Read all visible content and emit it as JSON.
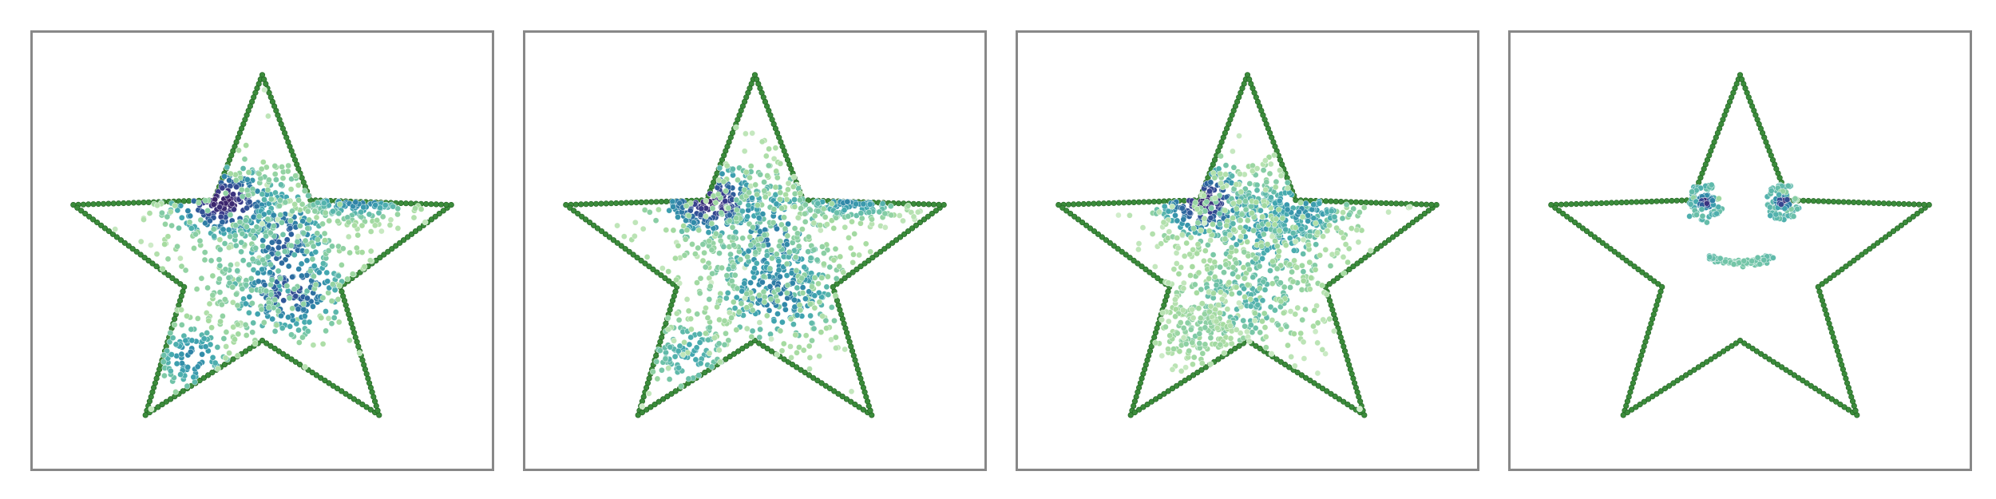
{
  "figure": {
    "panel_count": 4,
    "colormap": [
      "#d9f0d3",
      "#a6dba0",
      "#6fc3a8",
      "#41a7b0",
      "#2f86a8",
      "#2c5f9c",
      "#3a3b8a",
      "#3d1b5e"
    ],
    "outline_color": "#3b8b3b",
    "outline_edge_color": "#1f5f1f"
  },
  "chart_data": [
    {
      "type": "scatter",
      "title": "",
      "xlabel": "",
      "ylabel": "",
      "xlim": [
        0,
        1
      ],
      "ylim": [
        0,
        1
      ],
      "grid": false,
      "outline": {
        "shape": "five-pointed star",
        "points_per_edge": 28
      },
      "clusters": [
        {
          "center": [
            0.41,
            0.62
          ],
          "spread": [
            0.07,
            0.05
          ],
          "count": 220,
          "density": 0.95
        },
        {
          "center": [
            0.55,
            0.52
          ],
          "spread": [
            0.06,
            0.09
          ],
          "count": 170,
          "density": 0.7
        },
        {
          "center": [
            0.56,
            0.4
          ],
          "spread": [
            0.08,
            0.06
          ],
          "count": 190,
          "density": 0.75
        },
        {
          "center": [
            0.72,
            0.63
          ],
          "spread": [
            0.07,
            0.03
          ],
          "count": 130,
          "density": 0.6
        },
        {
          "center": [
            0.34,
            0.24
          ],
          "spread": [
            0.05,
            0.05
          ],
          "count": 100,
          "density": 0.55
        },
        {
          "center": [
            0.5,
            0.5
          ],
          "spread": [
            0.16,
            0.16
          ],
          "count": 240,
          "density": 0.25
        }
      ]
    },
    {
      "type": "scatter",
      "title": "",
      "xlabel": "",
      "ylabel": "",
      "xlim": [
        0,
        1
      ],
      "ylim": [
        0,
        1
      ],
      "grid": false,
      "outline": {
        "shape": "five-pointed star",
        "points_per_edge": 28
      },
      "clusters": [
        {
          "center": [
            0.4,
            0.62
          ],
          "spread": [
            0.07,
            0.05
          ],
          "count": 210,
          "density": 0.9
        },
        {
          "center": [
            0.54,
            0.52
          ],
          "spread": [
            0.07,
            0.1
          ],
          "count": 170,
          "density": 0.6
        },
        {
          "center": [
            0.55,
            0.4
          ],
          "spread": [
            0.09,
            0.07
          ],
          "count": 200,
          "density": 0.6
        },
        {
          "center": [
            0.72,
            0.63
          ],
          "spread": [
            0.07,
            0.03
          ],
          "count": 130,
          "density": 0.55
        },
        {
          "center": [
            0.35,
            0.25
          ],
          "spread": [
            0.06,
            0.06
          ],
          "count": 110,
          "density": 0.4
        },
        {
          "center": [
            0.5,
            0.5
          ],
          "spread": [
            0.17,
            0.17
          ],
          "count": 260,
          "density": 0.2
        }
      ]
    },
    {
      "type": "scatter",
      "title": "",
      "xlabel": "",
      "ylabel": "",
      "xlim": [
        0,
        1
      ],
      "ylim": [
        0,
        1
      ],
      "grid": false,
      "outline": {
        "shape": "five-pointed star",
        "points_per_edge": 28
      },
      "clusters": [
        {
          "center": [
            0.4,
            0.62
          ],
          "spread": [
            0.06,
            0.05
          ],
          "count": 200,
          "density": 0.9
        },
        {
          "center": [
            0.55,
            0.55
          ],
          "spread": [
            0.1,
            0.09
          ],
          "count": 260,
          "density": 0.45
        },
        {
          "center": [
            0.62,
            0.6
          ],
          "spread": [
            0.08,
            0.05
          ],
          "count": 150,
          "density": 0.5
        },
        {
          "center": [
            0.5,
            0.38
          ],
          "spread": [
            0.1,
            0.07
          ],
          "count": 200,
          "density": 0.35
        },
        {
          "center": [
            0.38,
            0.3
          ],
          "spread": [
            0.06,
            0.05
          ],
          "count": 130,
          "density": 0.2
        },
        {
          "center": [
            0.52,
            0.48
          ],
          "spread": [
            0.15,
            0.15
          ],
          "count": 200,
          "density": 0.15
        }
      ]
    },
    {
      "type": "scatter",
      "title": "",
      "xlabel": "",
      "ylabel": "",
      "xlim": [
        0,
        1
      ],
      "ylim": [
        0,
        1
      ],
      "grid": false,
      "outline": {
        "shape": "five-pointed star",
        "points_per_edge": 28
      },
      "features": [
        {
          "kind": "ring",
          "center": [
            0.42,
            0.62
          ],
          "radius": 0.035,
          "count": 55,
          "density": 0.3
        },
        {
          "kind": "eye",
          "center": [
            0.42,
            0.62
          ],
          "spread": [
            0.012,
            0.01
          ],
          "count": 45,
          "density": 0.95
        },
        {
          "kind": "ring",
          "center": [
            0.6,
            0.62
          ],
          "radius": 0.035,
          "count": 55,
          "density": 0.3
        },
        {
          "kind": "eye",
          "center": [
            0.6,
            0.62
          ],
          "spread": [
            0.012,
            0.01
          ],
          "count": 45,
          "density": 0.95
        },
        {
          "kind": "smile",
          "center": [
            0.5,
            0.5
          ],
          "radius": 0.11,
          "count": 90,
          "density": 0.45
        }
      ]
    }
  ]
}
